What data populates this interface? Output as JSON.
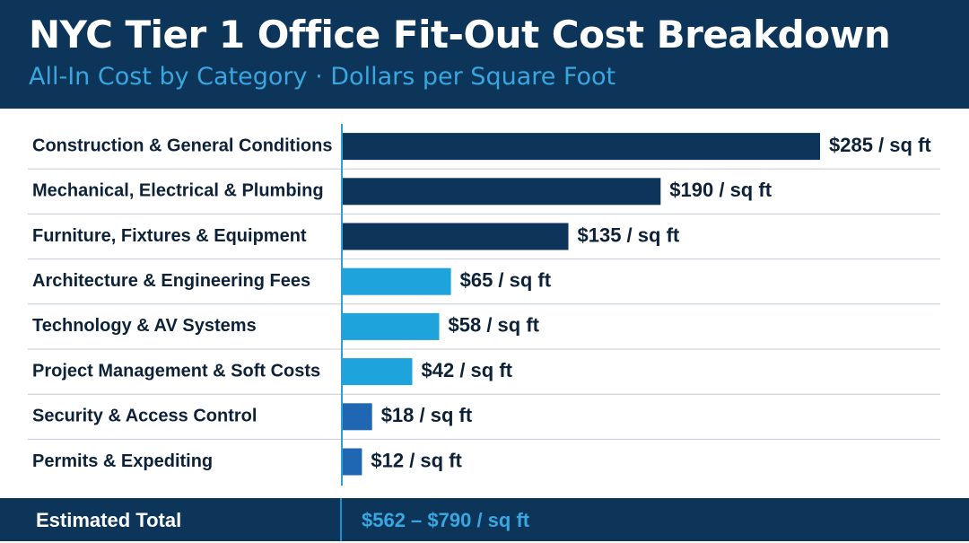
{
  "header": {
    "title": "NYC Tier 1 Office Fit-Out Cost Breakdown",
    "subtitle": "All-In Cost by Category · Dollars per Square Foot"
  },
  "colors": {
    "header_bg": "#0c3559",
    "bar_dark": "#0c3559",
    "bar_light": "#1ea3dc",
    "bar_medium": "#1f66b3",
    "accent_text": "#3aa6e0",
    "row_divider": "#c4cbd6",
    "axis_line": "#2d9fd6"
  },
  "chart_data": {
    "type": "bar",
    "orientation": "horizontal",
    "categories": [
      "Construction & General Conditions",
      "Mechanical, Electrical & Plumbing",
      "Furniture, Fixtures & Equipment",
      "Architecture & Engineering Fees",
      "Technology & AV Systems",
      "Project Management & Soft Costs",
      "Security & Access Control",
      "Permits & Expediting"
    ],
    "values": [
      285,
      190,
      135,
      65,
      58,
      42,
      18,
      12
    ],
    "value_labels": [
      "$285 / sq ft",
      "$190 / sq ft",
      "$135 / sq ft",
      "$65 / sq ft",
      "$58 / sq ft",
      "$42 / sq ft",
      "$18 / sq ft",
      "$12 / sq ft"
    ],
    "bar_color_groups": [
      "dark",
      "dark",
      "dark",
      "light",
      "light",
      "light",
      "medium",
      "medium"
    ],
    "unit": "$ / sq ft",
    "xlim": [
      0,
      285
    ],
    "grid": false
  },
  "footer": {
    "label": "Estimated Total",
    "value": "$562 – $790 / sq ft"
  }
}
